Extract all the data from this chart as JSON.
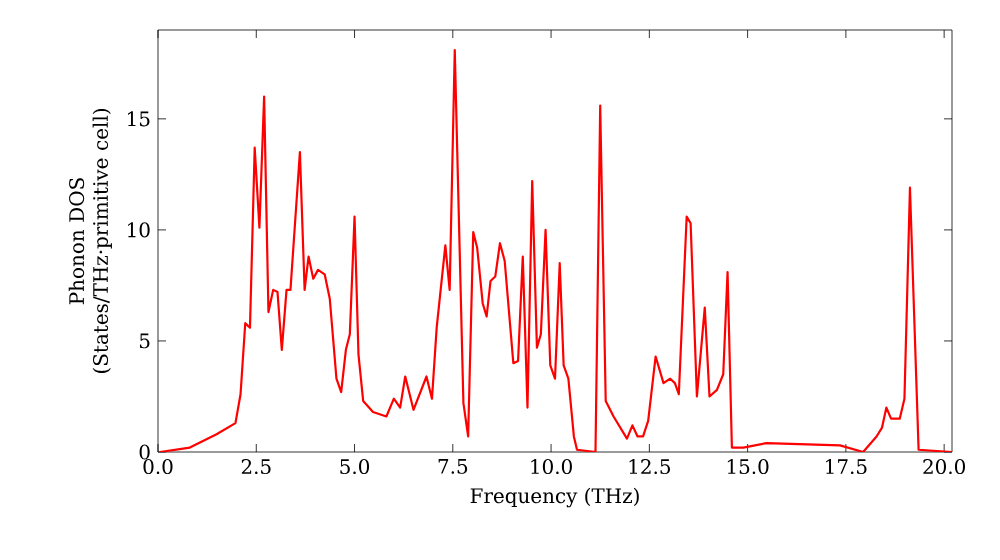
{
  "chart_data": {
    "type": "line",
    "xlabel": "Frequency (THz)",
    "ylabel": "Phonon DOS (States/THz·primitive cell)",
    "xlim": [
      0,
      20.2
    ],
    "ylim": [
      0,
      19
    ],
    "xticks": [
      {
        "value": 0,
        "label": "0.0"
      },
      {
        "value": 2.5,
        "label": "2.5"
      },
      {
        "value": 5,
        "label": "5.0"
      },
      {
        "value": 7.5,
        "label": "7.5"
      },
      {
        "value": 10,
        "label": "10.0"
      },
      {
        "value": 12.5,
        "label": "12.5"
      },
      {
        "value": 15,
        "label": "15.0"
      },
      {
        "value": 17.5,
        "label": "17.5"
      },
      {
        "value": 20,
        "label": "20.0"
      }
    ],
    "yticks": [
      0,
      5,
      10,
      15
    ],
    "marker": "none",
    "line_style": "solid",
    "series": [
      {
        "color": "#ff0000",
        "x": [
          0.05,
          0.81,
          1.49,
          1.97,
          2.1,
          2.22,
          2.34,
          2.46,
          2.58,
          2.7,
          2.81,
          2.93,
          3.04,
          3.15,
          3.27,
          3.37,
          3.61,
          3.73,
          3.83,
          3.95,
          4.07,
          4.24,
          4.37,
          4.54,
          4.66,
          4.78,
          4.88,
          5.0,
          5.1,
          5.22,
          5.47,
          5.81,
          6.0,
          6.16,
          6.29,
          6.5,
          6.83,
          6.97,
          7.09,
          7.31,
          7.42,
          7.55,
          7.77,
          7.89,
          8.02,
          8.12,
          8.26,
          8.36,
          8.46,
          8.58,
          8.7,
          8.82,
          9.04,
          9.16,
          9.28,
          9.4,
          9.52,
          9.64,
          9.74,
          9.86,
          9.98,
          10.1,
          10.22,
          10.32,
          10.44,
          10.58,
          10.66,
          11.13,
          11.25,
          11.39,
          11.59,
          11.93,
          12.07,
          12.2,
          12.34,
          12.47,
          12.66,
          12.86,
          13.03,
          13.15,
          13.25,
          13.45,
          13.55,
          13.71,
          13.91,
          14.03,
          14.22,
          14.38,
          14.49,
          14.6,
          14.89,
          15.48,
          17.35,
          17.94,
          18.28,
          18.42,
          18.53,
          18.65,
          18.87,
          18.99,
          19.13,
          19.35,
          20.2
        ],
        "values": [
          0,
          0.2,
          0.8,
          1.3,
          2.6,
          5.8,
          5.6,
          13.7,
          10.1,
          16.0,
          6.3,
          7.3,
          7.2,
          4.6,
          7.3,
          7.3,
          13.5,
          7.3,
          8.8,
          7.8,
          8.2,
          8.0,
          6.9,
          3.3,
          2.7,
          4.6,
          5.3,
          10.6,
          4.4,
          2.3,
          1.8,
          1.6,
          2.4,
          2.0,
          3.4,
          1.9,
          3.4,
          2.4,
          5.6,
          9.3,
          7.3,
          18.1,
          2.2,
          0.7,
          9.9,
          9.2,
          6.7,
          6.1,
          7.7,
          7.9,
          9.4,
          8.6,
          4.0,
          4.1,
          8.8,
          2.0,
          12.2,
          4.7,
          5.3,
          10.0,
          3.9,
          3.3,
          8.5,
          3.9,
          3.3,
          0.7,
          0.1,
          0,
          15.6,
          2.3,
          1.6,
          0.6,
          1.2,
          0.7,
          0.7,
          1.4,
          4.3,
          3.1,
          3.3,
          3.1,
          2.6,
          10.6,
          10.3,
          2.5,
          6.5,
          2.5,
          2.8,
          3.5,
          8.1,
          0.2,
          0.2,
          0.4,
          0.3,
          0,
          0.7,
          1.1,
          2.0,
          1.5,
          1.5,
          2.4,
          11.9,
          0.1,
          0
        ]
      }
    ]
  }
}
